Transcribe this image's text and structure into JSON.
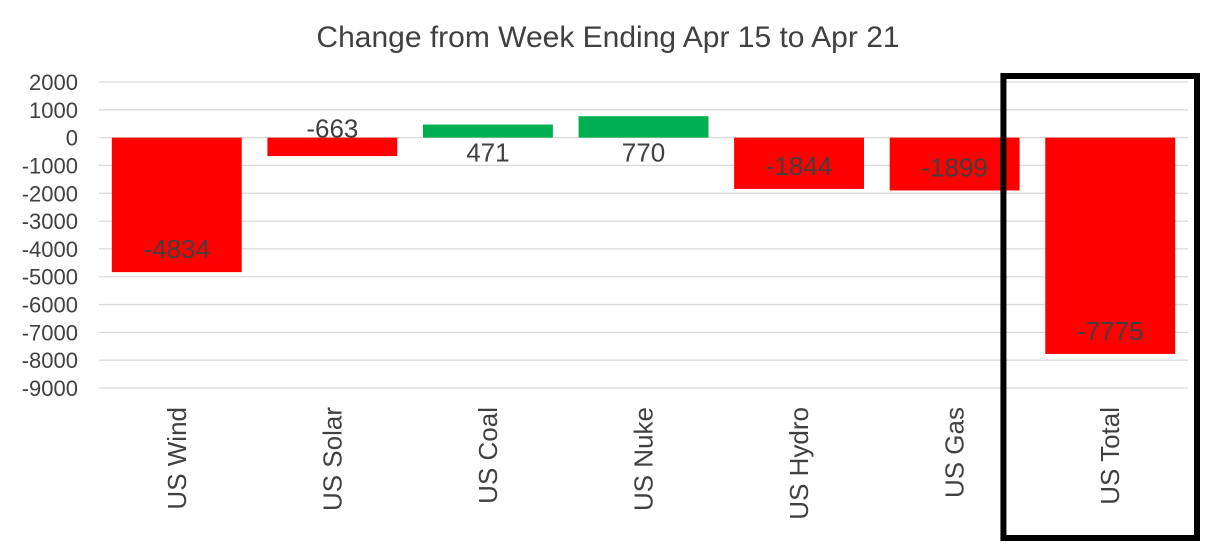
{
  "chart_data": {
    "type": "bar",
    "title": "Change from Week Ending Apr 15 to Apr 21",
    "xlabel": "",
    "ylabel": "",
    "categories": [
      "US Wind",
      "US Solar",
      "US Coal",
      "US Nuke",
      "US Hydro",
      "US Gas",
      "US Total"
    ],
    "values": [
      -4834,
      -663,
      471,
      770,
      -1844,
      -1899,
      -7775
    ],
    "data_labels": [
      "-4834",
      "-663",
      "471",
      "770",
      "-1844",
      "-1899",
      "-7775"
    ],
    "ylim": [
      -9000,
      2000
    ],
    "yticks": [
      2000,
      1000,
      0,
      -1000,
      -2000,
      -3000,
      -4000,
      -5000,
      -6000,
      -7000,
      -8000,
      -9000
    ],
    "ytick_labels": [
      "2000",
      "1000",
      "0",
      "-1000",
      "-2000",
      "-3000",
      "-4000",
      "-5000",
      "-6000",
      "-7000",
      "-8000",
      "-9000"
    ],
    "grid": true,
    "legend": "none",
    "highlighted_category": "US Total",
    "colors": {
      "negative": "#ff0000",
      "positive": "#00b050",
      "grid": "#d9d9d9",
      "text": "#404040",
      "highlight_border": "#000000"
    }
  }
}
